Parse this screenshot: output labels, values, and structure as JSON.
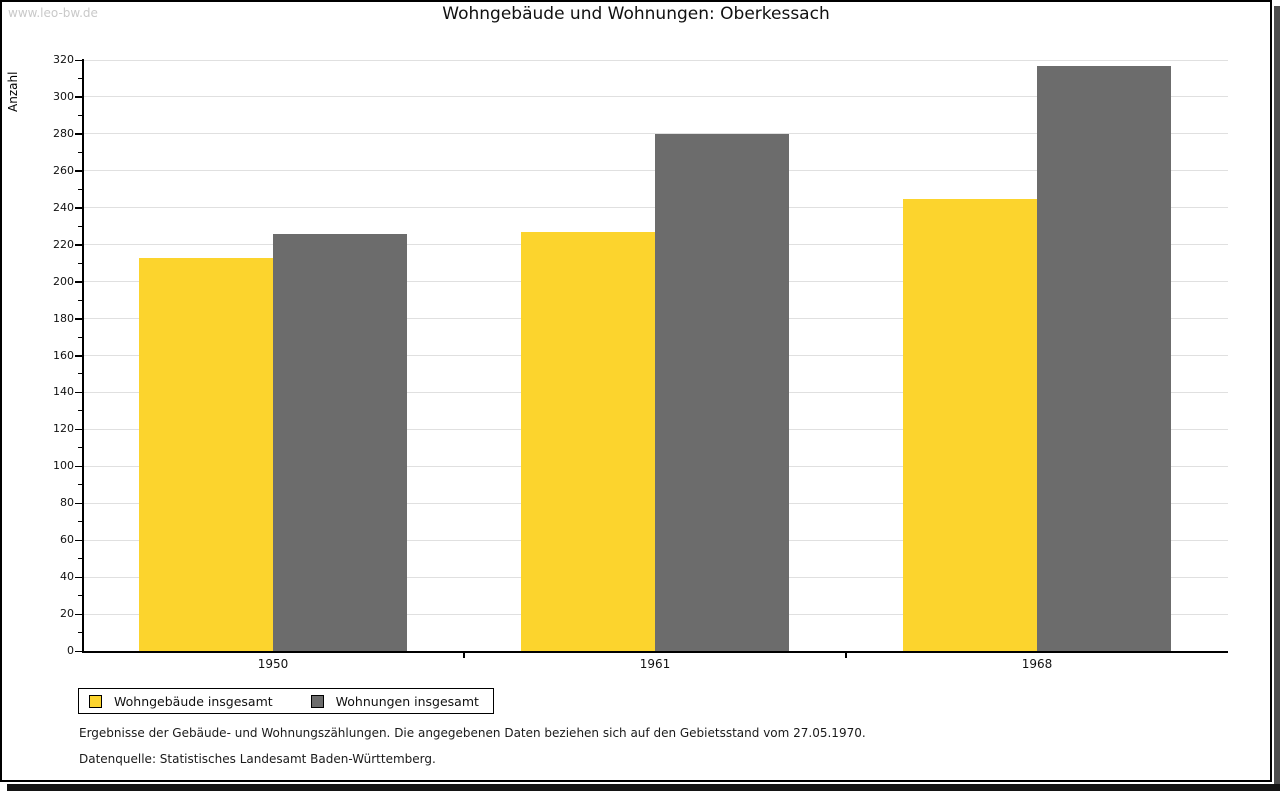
{
  "watermark": "www.leo-bw.de",
  "title": "Wohngebäude und Wohnungen: Oberkessach",
  "chart_data": {
    "type": "bar",
    "title": "Wohngebäude und Wohnungen: Oberkessach",
    "categories": [
      "1950",
      "1961",
      "1968"
    ],
    "series": [
      {
        "name": "Wohngebäude insgesamt",
        "color": "#FCD42D",
        "values": [
          213,
          227,
          245
        ]
      },
      {
        "name": "Wohnungen insgesamt",
        "color": "#6C6C6C",
        "values": [
          226,
          280,
          317
        ]
      }
    ],
    "xlabel": "",
    "ylabel": "Anzahl",
    "ylim": [
      0,
      320
    ],
    "ytick_major_step": 20,
    "ytick_minor_step": 10,
    "grid": true,
    "legend_position": "bottom-left"
  },
  "footer": {
    "note": "Ergebnisse der Gebäude- und Wohnungszählungen. Die angegebenen Daten beziehen sich auf den Gebietsstand vom 27.05.1970.",
    "source": "Datenquelle: Statistisches Landesamt Baden-Württemberg."
  }
}
